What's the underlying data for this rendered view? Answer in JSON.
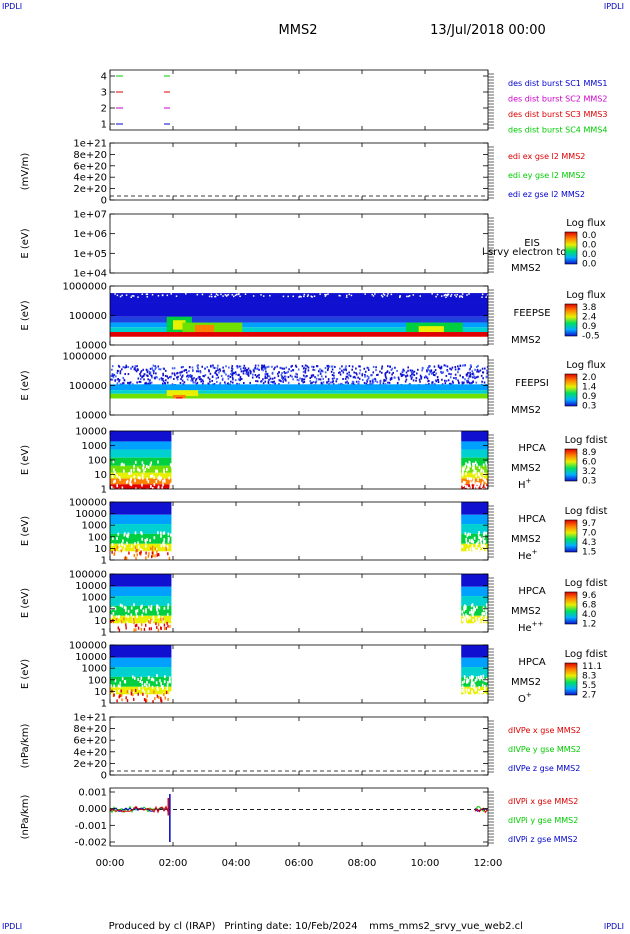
{
  "corner_label": "IPDLI",
  "header": {
    "spacecraft": "MMS2",
    "date": "13/Jul/2018 00:00"
  },
  "footer": {
    "produced_by": "Produced by cl (IRAP)",
    "printing_date": "Printing date: 10/Feb/2024",
    "filename": "mms_mms2_srvy_vue_web2.cl"
  },
  "colors": {
    "axis": "#000000",
    "red": "#dd0000",
    "green": "#00cc00",
    "blue": "#0000cc",
    "magenta": "#cc00cc"
  },
  "chart_data": {
    "type": "heatmap",
    "time_axis": {
      "tick_labels": [
        "00:00",
        "02:00",
        "04:00",
        "06:00",
        "08:00",
        "10:00",
        "12:00"
      ],
      "range_hours": [
        0,
        12
      ]
    },
    "panels": [
      {
        "id": "burst",
        "kind": "lines",
        "y_ticks": [
          "4",
          "3",
          "2",
          "1"
        ],
        "legend": [
          {
            "text": "des dist burst SC1 MMS1",
            "color": "#0000cc"
          },
          {
            "text": "des dist burst SC2 MMS2",
            "color": "#cc00cc"
          },
          {
            "text": "des dist burst SC3 MMS3",
            "color": "#dd0000"
          },
          {
            "text": "des dist burst SC4 MMS4",
            "color": "#00cc00"
          }
        ]
      },
      {
        "id": "edi",
        "kind": "lines",
        "ylabel": "(mV/m)",
        "y_ticks": [
          "1e+21",
          "8e+20",
          "6e+20",
          "4e+20",
          "2e+20",
          "0"
        ],
        "legend": [
          {
            "text": "edi ex gse l2 MMS2",
            "color": "#dd0000"
          },
          {
            "text": "edi ey gse l2 MMS2",
            "color": "#00cc00"
          },
          {
            "text": "edi ez gse l2 MMS2",
            "color": "#0000cc"
          }
        ]
      },
      {
        "id": "eis",
        "kind": "spectrogram",
        "ylabel": "E (eV)",
        "y_ticks": [
          "1e+07",
          "1e+06",
          "1e+05",
          "1e+04"
        ],
        "instrument": [
          "EIS"
        ],
        "overlap_text": "l srvy electron to",
        "spacecraft": "MMS2",
        "colorbar_title": "Log flux",
        "colorbar_ticks": [
          "0.0",
          "0.0",
          "0.0",
          "0.0"
        ]
      },
      {
        "id": "feepse",
        "kind": "spectrogram",
        "ylabel": "E (eV)",
        "y_ticks": [
          "1000000",
          "100000",
          "10000"
        ],
        "instrument": [
          "FEEPSE"
        ],
        "spacecraft": "MMS2",
        "colorbar_title": "Log flux",
        "colorbar_ticks": [
          "3.8",
          "2.4",
          "0.9",
          "-0.5"
        ]
      },
      {
        "id": "feepsi",
        "kind": "spectrogram",
        "ylabel": "E (eV)",
        "y_ticks": [
          "1000000",
          "100000",
          "10000"
        ],
        "instrument": [
          "FEEPSI"
        ],
        "spacecraft": "MMS2",
        "colorbar_title": "Log flux",
        "colorbar_ticks": [
          "2.0",
          "1.4",
          "0.9",
          "0.3"
        ]
      },
      {
        "id": "hpca_h",
        "kind": "spectrogram",
        "ylabel": "E (eV)",
        "y_ticks": [
          "10000",
          "1000",
          "100",
          "10",
          "1"
        ],
        "instrument": [
          "HPCA"
        ],
        "spacecraft": "MMS2",
        "species": "H",
        "species_sup": "+",
        "colorbar_title": "Log fdist",
        "colorbar_ticks": [
          "8.9",
          "6.0",
          "3.2",
          "0.3"
        ]
      },
      {
        "id": "hpca_he",
        "kind": "spectrogram",
        "ylabel": "E (eV)",
        "y_ticks": [
          "100000",
          "10000",
          "1000",
          "100",
          "10",
          "1"
        ],
        "instrument": [
          "HPCA"
        ],
        "spacecraft": "MMS2",
        "species": "He",
        "species_sup": "+",
        "colorbar_title": "Log fdist",
        "colorbar_ticks": [
          "9.7",
          "7.0",
          "4.3",
          "1.5"
        ]
      },
      {
        "id": "hpca_hepp",
        "kind": "spectrogram",
        "ylabel": "E (eV)",
        "y_ticks": [
          "100000",
          "10000",
          "1000",
          "100",
          "10",
          "1"
        ],
        "instrument": [
          "HPCA"
        ],
        "spacecraft": "MMS2",
        "species": "He",
        "species_sup": "++",
        "colorbar_title": "Log fdist",
        "colorbar_ticks": [
          "9.6",
          "6.8",
          "4.0",
          "1.2"
        ]
      },
      {
        "id": "hpca_o",
        "kind": "spectrogram",
        "ylabel": "E (eV)",
        "y_ticks": [
          "100000",
          "10000",
          "1000",
          "100",
          "10",
          "1"
        ],
        "instrument": [
          "HPCA"
        ],
        "spacecraft": "MMS2",
        "species": "O",
        "species_sup": "+",
        "colorbar_title": "Log fdist",
        "colorbar_ticks": [
          "11.1",
          "8.3",
          "5.5",
          "2.7"
        ]
      },
      {
        "id": "divpe",
        "kind": "lines",
        "ylabel": "(nPa/km)",
        "y_ticks": [
          "1e+21",
          "8e+20",
          "6e+20",
          "4e+20",
          "2e+20",
          "0"
        ],
        "legend": [
          {
            "text": "dIVPe x gse MMS2",
            "color": "#dd0000"
          },
          {
            "text": "dIVPe y gse MMS2",
            "color": "#00cc00"
          },
          {
            "text": "dIVPe z gse MMS2",
            "color": "#0000cc"
          }
        ]
      },
      {
        "id": "divpi",
        "kind": "lines",
        "ylabel": "(nPa/km)",
        "y_ticks": [
          "0.001",
          "0.000",
          "-0.001",
          "-0.002"
        ],
        "legend": [
          {
            "text": "dIVPi x gse MMS2",
            "color": "#dd0000"
          },
          {
            "text": "dIVPi y gse MMS2",
            "color": "#00cc00"
          },
          {
            "text": "dIVPi z gse MMS2",
            "color": "#0000cc"
          }
        ]
      }
    ]
  }
}
